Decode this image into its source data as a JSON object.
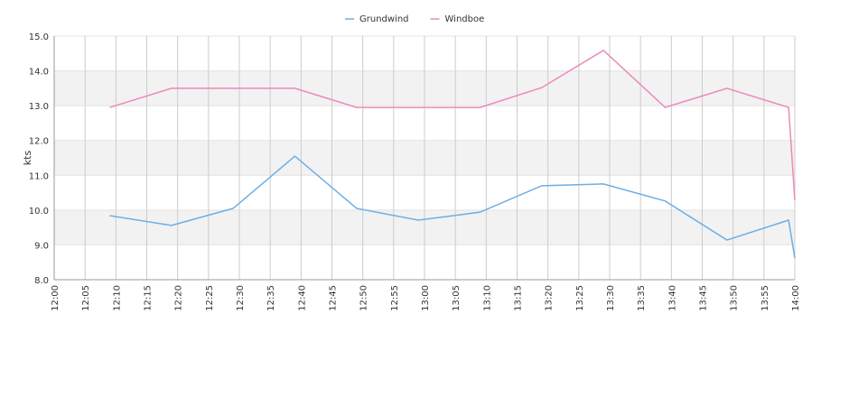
{
  "chart_data": {
    "type": "line",
    "ylabel": "kts",
    "x": [
      "12:09",
      "12:19",
      "12:29",
      "12:39",
      "12:49",
      "12:59",
      "13:09",
      "13:19",
      "13:29",
      "13:39",
      "13:49",
      "13:59",
      "14:00"
    ],
    "series": [
      {
        "name": "Grundwind",
        "color": "#6aaee8",
        "values": [
          9.84,
          9.56,
          10.05,
          11.55,
          10.05,
          9.71,
          9.94,
          10.7,
          10.75,
          10.26,
          9.14,
          9.71,
          8.62
        ]
      },
      {
        "name": "Windboe",
        "color": "#ee88bb",
        "values": [
          12.95,
          13.5,
          13.5,
          13.5,
          12.95,
          12.95,
          12.95,
          13.52,
          14.59,
          12.95,
          13.5,
          12.95,
          10.28
        ]
      }
    ],
    "xlim": [
      "12:00",
      "14:00"
    ],
    "xticks": [
      "12:00",
      "12:05",
      "12:10",
      "12:15",
      "12:20",
      "12:25",
      "12:30",
      "12:35",
      "12:40",
      "12:45",
      "12:50",
      "12:55",
      "13:00",
      "13:05",
      "13:10",
      "13:15",
      "13:20",
      "13:25",
      "13:30",
      "13:35",
      "13:40",
      "13:45",
      "13:50",
      "13:55",
      "14:00"
    ],
    "ylim": [
      8,
      15
    ],
    "yticks": [
      {
        "value": 8,
        "label": "8.0"
      },
      {
        "value": 9,
        "label": "9.0"
      },
      {
        "value": 10,
        "label": "10.0"
      },
      {
        "value": 11,
        "label": "11.0"
      },
      {
        "value": 12,
        "label": "12.0"
      },
      {
        "value": 13,
        "label": "13.0"
      },
      {
        "value": 14,
        "label": "14.0"
      },
      {
        "value": 15,
        "label": "15.0"
      }
    ],
    "grid": true,
    "legend": "top"
  }
}
